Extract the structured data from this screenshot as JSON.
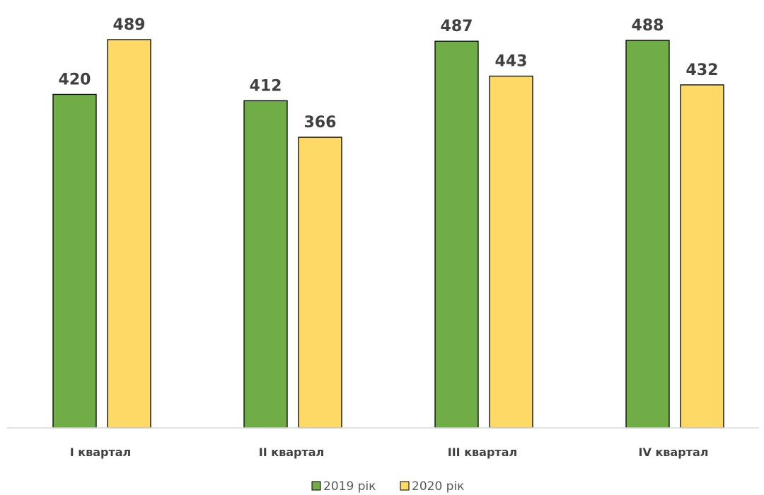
{
  "chart_data": {
    "type": "bar",
    "title": "",
    "xlabel": "",
    "ylabel": "",
    "categories": [
      "I квартал",
      "II квартал",
      "III квартал",
      "IV квартал"
    ],
    "series": [
      {
        "name": "2019 рік",
        "values": [
          420,
          412,
          487,
          488
        ],
        "color": "#70ad47"
      },
      {
        "name": "2020 рік",
        "values": [
          489,
          366,
          443,
          432
        ],
        "color": "#ffd966"
      }
    ],
    "ylim": [
      0,
      500
    ],
    "grid": false,
    "legend": "bottom-center",
    "data_labels": true
  }
}
